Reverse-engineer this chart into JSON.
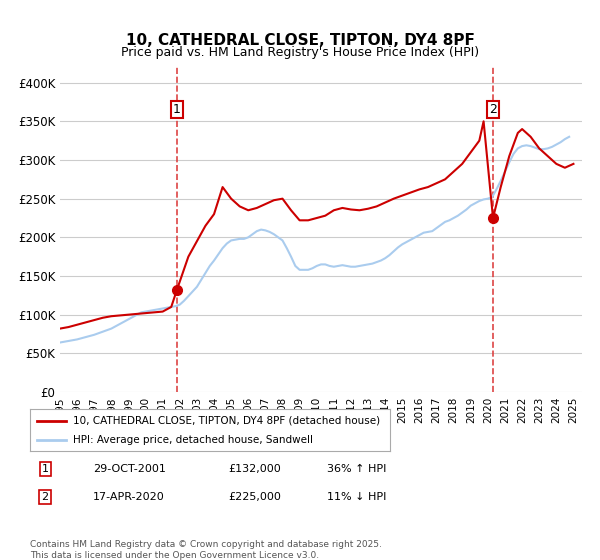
{
  "title": "10, CATHEDRAL CLOSE, TIPTON, DY4 8PF",
  "subtitle": "Price paid vs. HM Land Registry's House Price Index (HPI)",
  "legend_label_red": "10, CATHEDRAL CLOSE, TIPTON, DY4 8PF (detached house)",
  "legend_label_blue": "HPI: Average price, detached house, Sandwell",
  "xlabel": "",
  "ylabel": "",
  "ylim": [
    0,
    420000
  ],
  "yticks": [
    0,
    50000,
    100000,
    150000,
    200000,
    250000,
    300000,
    350000,
    400000
  ],
  "ytick_labels": [
    "£0",
    "£50K",
    "£100K",
    "£150K",
    "£200K",
    "£250K",
    "£300K",
    "£350K",
    "£400K"
  ],
  "xlim_start": 1995.0,
  "xlim_end": 2025.5,
  "xticks": [
    1995,
    1996,
    1997,
    1998,
    1999,
    2000,
    2001,
    2002,
    2003,
    2004,
    2005,
    2006,
    2007,
    2008,
    2009,
    2010,
    2011,
    2012,
    2013,
    2014,
    2015,
    2016,
    2017,
    2018,
    2019,
    2020,
    2021,
    2022,
    2023,
    2024,
    2025
  ],
  "marker1_x": 2001.83,
  "marker1_y": 132000,
  "marker1_label": "1",
  "marker1_date": "29-OCT-2001",
  "marker1_price": "£132,000",
  "marker1_hpi": "36% ↑ HPI",
  "marker2_x": 2020.3,
  "marker2_y": 225000,
  "marker2_label": "2",
  "marker2_date": "17-APR-2020",
  "marker2_price": "£225,000",
  "marker2_hpi": "11% ↓ HPI",
  "vline1_x": 2001.83,
  "vline2_x": 2020.3,
  "red_color": "#cc0000",
  "blue_color": "#aaccee",
  "vline_color": "#dd4444",
  "background_color": "#ffffff",
  "grid_color": "#cccccc",
  "footnote": "Contains HM Land Registry data © Crown copyright and database right 2025.\nThis data is licensed under the Open Government Licence v3.0.",
  "hpi_x": [
    1995.0,
    1995.25,
    1995.5,
    1995.75,
    1996.0,
    1996.25,
    1996.5,
    1996.75,
    1997.0,
    1997.25,
    1997.5,
    1997.75,
    1998.0,
    1998.25,
    1998.5,
    1998.75,
    1999.0,
    1999.25,
    1999.5,
    1999.75,
    2000.0,
    2000.25,
    2000.5,
    2000.75,
    2001.0,
    2001.25,
    2001.5,
    2001.75,
    2002.0,
    2002.25,
    2002.5,
    2002.75,
    2003.0,
    2003.25,
    2003.5,
    2003.75,
    2004.0,
    2004.25,
    2004.5,
    2004.75,
    2005.0,
    2005.25,
    2005.5,
    2005.75,
    2006.0,
    2006.25,
    2006.5,
    2006.75,
    2007.0,
    2007.25,
    2007.5,
    2007.75,
    2008.0,
    2008.25,
    2008.5,
    2008.75,
    2009.0,
    2009.25,
    2009.5,
    2009.75,
    2010.0,
    2010.25,
    2010.5,
    2010.75,
    2011.0,
    2011.25,
    2011.5,
    2011.75,
    2012.0,
    2012.25,
    2012.5,
    2012.75,
    2013.0,
    2013.25,
    2013.5,
    2013.75,
    2014.0,
    2014.25,
    2014.5,
    2014.75,
    2015.0,
    2015.25,
    2015.5,
    2015.75,
    2016.0,
    2016.25,
    2016.5,
    2016.75,
    2017.0,
    2017.25,
    2017.5,
    2017.75,
    2018.0,
    2018.25,
    2018.5,
    2018.75,
    2019.0,
    2019.25,
    2019.5,
    2019.75,
    2020.0,
    2020.25,
    2020.5,
    2020.75,
    2021.0,
    2021.25,
    2021.5,
    2021.75,
    2022.0,
    2022.25,
    2022.5,
    2022.75,
    2023.0,
    2023.25,
    2023.5,
    2023.75,
    2024.0,
    2024.25,
    2024.5,
    2024.75
  ],
  "hpi_y": [
    64000,
    65000,
    66000,
    67000,
    68000,
    69500,
    71000,
    72500,
    74000,
    76000,
    78000,
    80000,
    82000,
    85000,
    88000,
    91000,
    94000,
    97000,
    100000,
    103000,
    104000,
    105000,
    106000,
    107000,
    108000,
    109000,
    110000,
    111000,
    113000,
    118000,
    124000,
    130000,
    136000,
    145000,
    154000,
    163000,
    170000,
    178000,
    186000,
    192000,
    196000,
    197000,
    198000,
    198000,
    200000,
    204000,
    208000,
    210000,
    209000,
    207000,
    204000,
    200000,
    196000,
    186000,
    175000,
    163000,
    158000,
    158000,
    158000,
    160000,
    163000,
    165000,
    165000,
    163000,
    162000,
    163000,
    164000,
    163000,
    162000,
    162000,
    163000,
    164000,
    165000,
    166000,
    168000,
    170000,
    173000,
    177000,
    182000,
    187000,
    191000,
    194000,
    197000,
    200000,
    203000,
    206000,
    207000,
    208000,
    212000,
    216000,
    220000,
    222000,
    225000,
    228000,
    232000,
    236000,
    241000,
    244000,
    247000,
    249000,
    250000,
    252000,
    262000,
    273000,
    285000,
    297000,
    308000,
    315000,
    318000,
    319000,
    318000,
    316000,
    314000,
    314000,
    315000,
    317000,
    320000,
    323000,
    327000,
    330000
  ],
  "red_x": [
    1995.0,
    1995.5,
    1996.0,
    1996.5,
    1997.0,
    1997.5,
    1997.75,
    1998.0,
    1998.5,
    1999.0,
    1999.5,
    2000.0,
    2000.5,
    2001.0,
    2001.5,
    2001.83,
    2002.5,
    2003.0,
    2003.5,
    2004.0,
    2004.5,
    2005.0,
    2005.5,
    2006.0,
    2006.5,
    2007.0,
    2007.5,
    2008.0,
    2008.5,
    2009.0,
    2009.5,
    2010.0,
    2010.5,
    2011.0,
    2011.5,
    2012.0,
    2012.5,
    2013.0,
    2013.5,
    2014.0,
    2014.5,
    2015.0,
    2015.5,
    2016.0,
    2016.5,
    2017.0,
    2017.5,
    2018.0,
    2018.5,
    2019.0,
    2019.5,
    2019.75,
    2020.3,
    2020.75,
    2021.0,
    2021.25,
    2021.5,
    2021.75,
    2022.0,
    2022.5,
    2023.0,
    2023.5,
    2024.0,
    2024.5,
    2025.0
  ],
  "red_y": [
    82000,
    84000,
    87000,
    90000,
    93000,
    96000,
    97000,
    98000,
    99000,
    100000,
    101000,
    102000,
    103000,
    104000,
    110000,
    132000,
    175000,
    195000,
    215000,
    230000,
    265000,
    250000,
    240000,
    235000,
    238000,
    243000,
    248000,
    250000,
    235000,
    222000,
    222000,
    225000,
    228000,
    235000,
    238000,
    236000,
    235000,
    237000,
    240000,
    245000,
    250000,
    254000,
    258000,
    262000,
    265000,
    270000,
    275000,
    285000,
    295000,
    310000,
    325000,
    350000,
    225000,
    265000,
    285000,
    305000,
    320000,
    335000,
    340000,
    330000,
    315000,
    305000,
    295000,
    290000,
    295000
  ]
}
